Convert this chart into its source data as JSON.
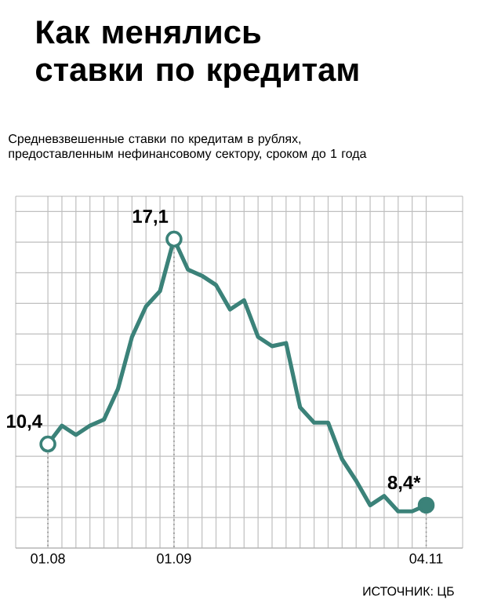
{
  "chart_data": {
    "type": "line",
    "title": "Как менялись ставки по кредитам",
    "subtitle": "Средневзвешенные ставки по кредитам в рублях, предоставленным нефинансовому сектору, сроком до 1 года",
    "categories": [
      "01.08",
      null,
      null,
      null,
      null,
      null,
      null,
      null,
      null,
      "01.09",
      null,
      null,
      null,
      null,
      null,
      null,
      null,
      null,
      null,
      null,
      null,
      null,
      null,
      null,
      null,
      null,
      null,
      "04.11"
    ],
    "series": [
      {
        "color": "#3b8279",
        "values": [
          10.4,
          11.0,
          10.7,
          11.0,
          11.2,
          12.2,
          13.9,
          14.9,
          15.4,
          17.1,
          16.1,
          15.9,
          15.6,
          14.8,
          15.1,
          13.9,
          13.6,
          13.7,
          11.6,
          11.1,
          11.1,
          9.9,
          9.2,
          8.4,
          8.7,
          8.2,
          8.2,
          8.4
        ],
        "value_labels": [
          "10,4",
          null,
          null,
          null,
          null,
          null,
          null,
          null,
          null,
          "17,1",
          null,
          null,
          null,
          null,
          null,
          null,
          null,
          null,
          null,
          null,
          null,
          null,
          null,
          null,
          null,
          null,
          null,
          "8,4*"
        ]
      }
    ],
    "ylim": [
      7,
      18.5
    ],
    "yticks": [
      {
        "value": 7,
        "label": null
      },
      {
        "value": 8,
        "label": null
      },
      {
        "value": 9,
        "label": null
      },
      {
        "value": 10,
        "label": null
      },
      {
        "value": 11,
        "label": null
      },
      {
        "value": 12,
        "label": null
      },
      {
        "value": 13,
        "label": null
      },
      {
        "value": 14,
        "label": null
      },
      {
        "value": 15,
        "label": null
      },
      {
        "value": 16,
        "label": null
      },
      {
        "value": 17,
        "label": null
      },
      {
        "value": 18,
        "label": null
      }
    ],
    "tick_labels": "x",
    "grid": true,
    "line_style": "solid",
    "annotations": [
      "ИСТОЧНИК: ЦБ"
    ]
  }
}
